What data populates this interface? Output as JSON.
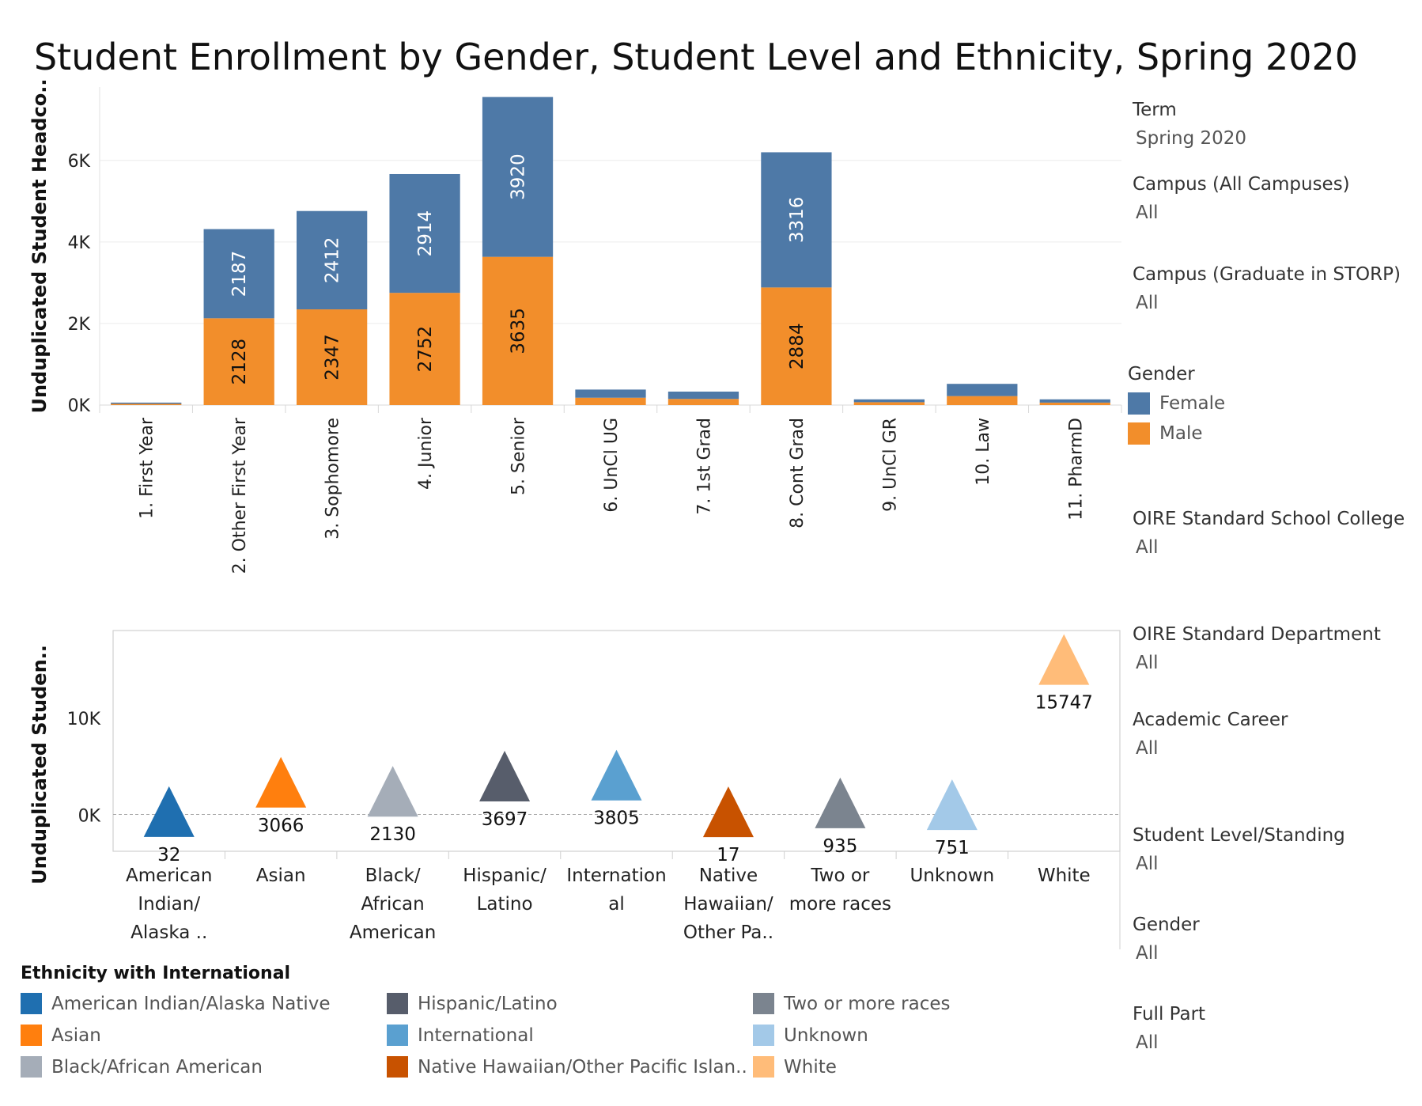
{
  "title": "Student Enrollment by Gender, Student Level and Ethnicity, Spring 2020",
  "colors": {
    "female": "#4e79a7",
    "male": "#f28e2b",
    "american_indian": "#1f6fb0",
    "asian": "#ff7f0e",
    "black": "#a5adb8",
    "hispanic": "#575d6b",
    "international": "#5aa0d0",
    "native_hawaiian": "#c85200",
    "two_or_more": "#7b848f",
    "unknown": "#a3c9e8",
    "white": "#ffbc79"
  },
  "filters": [
    {
      "title": "Term",
      "value": "Spring 2020"
    },
    {
      "title": "Campus (All Campuses)",
      "value": "All"
    },
    {
      "title": "Campus (Graduate in STORP)",
      "value": "All"
    },
    {
      "title": "OIRE Standard School College",
      "value": "All"
    },
    {
      "title": "OIRE Standard Department",
      "value": "All"
    },
    {
      "title": "Academic Career",
      "value": "All"
    },
    {
      "title": "Student Level/Standing",
      "value": "All"
    },
    {
      "title": "Gender",
      "value": "All"
    },
    {
      "title": "Full Part",
      "value": "All"
    }
  ],
  "gender_legend": {
    "title": "Gender",
    "items": [
      {
        "label": "Female",
        "color": "#4e79a7"
      },
      {
        "label": "Male",
        "color": "#f28e2b"
      }
    ]
  },
  "ethnicity_legend": {
    "title": "Ethnicity with International",
    "items": [
      {
        "label": "American Indian/Alaska Native",
        "color": "#1f6fb0"
      },
      {
        "label": "Asian",
        "color": "#ff7f0e"
      },
      {
        "label": "Black/African American",
        "color": "#a5adb8"
      },
      {
        "label": "Hispanic/Latino",
        "color": "#575d6b"
      },
      {
        "label": "International",
        "color": "#5aa0d0"
      },
      {
        "label": "Native Hawaiian/Other Pacific Islan..",
        "color": "#c85200"
      },
      {
        "label": "Two or more races",
        "color": "#7b848f"
      },
      {
        "label": "Unknown",
        "color": "#a3c9e8"
      },
      {
        "label": "White",
        "color": "#ffbc79"
      }
    ]
  },
  "chart_data": [
    {
      "type": "bar",
      "stacked": true,
      "title": "Student Enrollment by Gender, Student Level and Ethnicity, Spring 2020",
      "xlabel": "",
      "ylabel": "Unduplicated Student Headco..",
      "ylim": [
        0,
        7800
      ],
      "yticks": [
        0,
        2000,
        4000,
        6000
      ],
      "ytick_labels": [
        "0K",
        "2K",
        "4K",
        "6K"
      ],
      "categories": [
        "1. First Year",
        "2. Other First Year",
        "3. Sophomore",
        "4. Junior",
        "5. Senior",
        "6. UnCl UG",
        "7. 1st Grad",
        "8. Cont Grad",
        "9. UnCl GR",
        "10. Law",
        "11. PharmD"
      ],
      "series": [
        {
          "name": "Male",
          "values": [
            30,
            2128,
            2347,
            2752,
            3635,
            180,
            150,
            2884,
            70,
            220,
            60
          ],
          "labels": [
            "",
            "2128",
            "2347",
            "2752",
            "3635",
            "",
            "",
            "2884",
            "",
            "",
            ""
          ]
        },
        {
          "name": "Female",
          "values": [
            30,
            2187,
            2412,
            2914,
            3920,
            200,
            180,
            3316,
            70,
            300,
            80
          ],
          "labels": [
            "",
            "2187",
            "2412",
            "2914",
            "3920",
            "",
            "",
            "3316",
            "",
            "",
            ""
          ]
        }
      ]
    },
    {
      "type": "scatter",
      "marker": "triangle",
      "ylabel": "Unduplicated Studen..",
      "ylim": [
        -3800,
        19000
      ],
      "yticks": [
        0,
        10000
      ],
      "ytick_labels": [
        "0K",
        "10K"
      ],
      "categories": [
        "American Indian/ Alaska ..",
        "Asian",
        "Black/ African American",
        "Hispanic/ Latino",
        "Internation al",
        "Native Hawaiian/ Other Pa..",
        "Two or more races",
        "Unknown",
        "White"
      ],
      "category_lines": [
        [
          "American",
          "Indian/",
          "Alaska .."
        ],
        [
          "Asian"
        ],
        [
          "Black/",
          "African",
          "American"
        ],
        [
          "Hispanic/",
          "Latino"
        ],
        [
          "Internation",
          "al"
        ],
        [
          "Native",
          "Hawaiian/",
          "Other Pa.."
        ],
        [
          "Two or",
          "more races"
        ],
        [
          "Unknown"
        ],
        [
          "White"
        ]
      ],
      "values": [
        32,
        3066,
        2130,
        3697,
        3805,
        17,
        935,
        751,
        15747
      ],
      "labels": [
        "32",
        "3066",
        "2130",
        "3697",
        "3805",
        "17",
        "935",
        "751",
        "15747"
      ],
      "color_keys": [
        "american_indian",
        "asian",
        "black",
        "hispanic",
        "international",
        "native_hawaiian",
        "two_or_more",
        "unknown",
        "white"
      ]
    }
  ]
}
